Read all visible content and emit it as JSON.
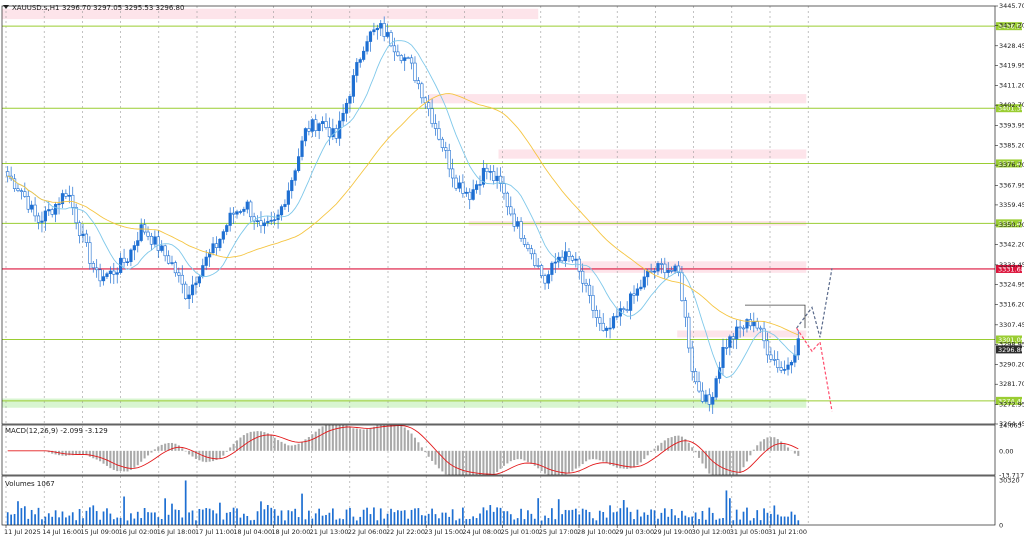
{
  "header": {
    "symbol": "XAUUSD.s,H1",
    "ohlc": "3296.70 3297.05 3295.53 3296.80"
  },
  "colors": {
    "bull": "#1e6fd2",
    "bear": "#1e6fd2",
    "ma_fast": "#7fc8ea",
    "ma_slow": "#f5c542",
    "level_green": "#9acd32",
    "level_red": "#dc143c",
    "zone_pink": "#fde4ea",
    "zone_green": "#d8f5d0",
    "macd_hist": "#a9a9a9",
    "macd_signal": "#e31a1c",
    "volume": "#1e6fd2",
    "projection_up": "#5b6b8c",
    "projection_down": "#ff4d6d"
  },
  "chart_data": [
    {
      "type": "candlestick",
      "panel": "price",
      "ylim": [
        3264.45,
        3445.7
      ],
      "price_ticks": [
        "3445.70",
        "3437.20",
        "3428.45",
        "3419.95",
        "3411.20",
        "3402.70",
        "3393.95",
        "3385.20",
        "3376.70",
        "3367.95",
        "3359.45",
        "3350.70",
        "3342.20",
        "3333.45",
        "3324.95",
        "3316.20",
        "3307.45",
        "3298.95",
        "3290.20",
        "3281.70",
        "3272.95",
        "3264.45"
      ],
      "levels": [
        {
          "price": 3436.95,
          "label": "3436.95",
          "color": "level_green"
        },
        {
          "price": 3401.38,
          "label": "3401.38",
          "color": "level_green"
        },
        {
          "price": 3377.43,
          "label": "3377.43",
          "color": "level_green"
        },
        {
          "price": 3351.45,
          "label": "3351.45",
          "color": "level_green"
        },
        {
          "price": 3331.68,
          "label": "3331.68",
          "color": "level_red"
        },
        {
          "price": 3301.09,
          "label": "3301.09",
          "color": "level_green"
        },
        {
          "price": 3274.48,
          "label": "3274.48",
          "color": "level_green"
        }
      ],
      "current_price": {
        "price": 3296.8,
        "label": "3296.80"
      },
      "zones": [
        {
          "from": 3440.0,
          "to": 3444.5,
          "x0": 0.0,
          "x1": 0.54,
          "kind": "pink"
        },
        {
          "from": 3403.5,
          "to": 3407.5,
          "x0": 0.43,
          "x1": 0.81,
          "kind": "pink"
        },
        {
          "from": 3379.5,
          "to": 3383.5,
          "x0": 0.5,
          "x1": 0.81,
          "kind": "pink"
        },
        {
          "from": 3350.5,
          "to": 3352.5,
          "x0": 0.47,
          "x1": 0.81,
          "kind": "pink"
        },
        {
          "from": 3330.0,
          "to": 3335.0,
          "x0": 0.58,
          "x1": 0.81,
          "kind": "pink"
        },
        {
          "from": 3302.0,
          "to": 3305.0,
          "x0": 0.68,
          "x1": 0.81,
          "kind": "pink"
        },
        {
          "from": 3271.5,
          "to": 3275.5,
          "x0": 0.0,
          "x1": 0.81,
          "kind": "green"
        }
      ],
      "key_closes": [
        3372,
        3365,
        3352,
        3358,
        3366,
        3345,
        3328,
        3330,
        3336,
        3350,
        3342,
        3334,
        3320,
        3333,
        3342,
        3355,
        3360,
        3348,
        3352,
        3370,
        3392,
        3396,
        3388,
        3410,
        3432,
        3436,
        3428,
        3420,
        3405,
        3388,
        3370,
        3364,
        3375,
        3368,
        3352,
        3341,
        3326,
        3338,
        3335,
        3318,
        3302,
        3312,
        3320,
        3330,
        3333,
        3329,
        3284,
        3272,
        3298,
        3305,
        3310,
        3296,
        3287,
        3300
      ]
    },
    {
      "type": "histogram",
      "panel": "macd",
      "title": "MACD(12,26,9) -2.099 -3.129",
      "ylim": [
        -13.717,
        14.663
      ],
      "ticks": [
        "14.663",
        "0.00",
        "-13.717"
      ]
    },
    {
      "type": "bar",
      "panel": "volumes",
      "title": "Volumes 1067",
      "ylim": [
        0,
        30320
      ],
      "ticks": [
        "30320",
        "0"
      ]
    }
  ],
  "time_axis": [
    "11 Jul 2025",
    "14 Jul 16:00",
    "15 Jul 09:00",
    "16 Jul 02:00",
    "16 Jul 18:00",
    "17 Jul 11:00",
    "18 Jul 04:00",
    "18 Jul 20:00",
    "21 Jul 13:00",
    "22 Jul 06:00",
    "22 Jul 22:00",
    "23 Jul 15:00",
    "24 Jul 08:00",
    "25 Jul 01:00",
    "25 Jul 17:00",
    "28 Jul 10:00",
    "29 Jul 03:00",
    "29 Jul 19:00",
    "30 Jul 12:00",
    "31 Jul 05:00",
    "31 Jul 21:00"
  ]
}
